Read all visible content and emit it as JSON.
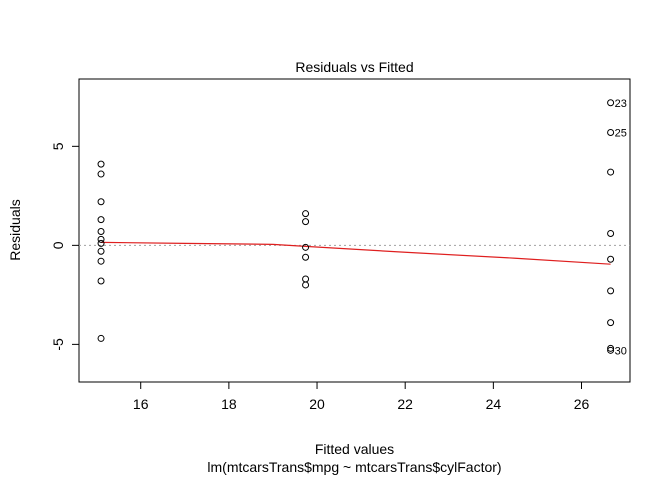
{
  "chart_data": {
    "type": "scatter",
    "title": "Residuals vs Fitted",
    "xlabel": "Fitted values",
    "subtitle": "lm(mtcarsTrans$mpg ~ mtcarsTrans$cylFactor)",
    "ylabel": "Residuals",
    "xlim": [
      14.6,
      27.1
    ],
    "ylim": [
      -6.9,
      8.4
    ],
    "xticks": [
      16,
      18,
      20,
      22,
      24,
      26
    ],
    "yticks": [
      -5,
      0,
      5
    ],
    "reference_line_y": 0,
    "points": [
      {
        "x": 15.1,
        "y": 4.1
      },
      {
        "x": 15.1,
        "y": 3.6
      },
      {
        "x": 15.1,
        "y": 2.2
      },
      {
        "x": 15.1,
        "y": 1.3
      },
      {
        "x": 15.1,
        "y": 0.7
      },
      {
        "x": 15.1,
        "y": 0.3
      },
      {
        "x": 15.1,
        "y": 0.1
      },
      {
        "x": 15.1,
        "y": -0.3
      },
      {
        "x": 15.1,
        "y": -0.8
      },
      {
        "x": 15.1,
        "y": -1.8
      },
      {
        "x": 15.1,
        "y": -4.7
      },
      {
        "x": 19.74,
        "y": 1.6
      },
      {
        "x": 19.74,
        "y": 1.2
      },
      {
        "x": 19.74,
        "y": -0.1
      },
      {
        "x": 19.74,
        "y": -0.6
      },
      {
        "x": 19.74,
        "y": -1.7
      },
      {
        "x": 19.74,
        "y": -2.0
      },
      {
        "x": 26.66,
        "y": 7.2,
        "label": "23"
      },
      {
        "x": 26.66,
        "y": 5.7,
        "label": "25"
      },
      {
        "x": 26.66,
        "y": 3.7
      },
      {
        "x": 26.66,
        "y": 0.6
      },
      {
        "x": 26.66,
        "y": -0.7
      },
      {
        "x": 26.66,
        "y": -2.3
      },
      {
        "x": 26.66,
        "y": -3.9
      },
      {
        "x": 26.66,
        "y": -5.2
      },
      {
        "x": 26.66,
        "y": -5.3,
        "label": "30"
      }
    ],
    "smooth_line": [
      {
        "x": 15.1,
        "y": 0.15
      },
      {
        "x": 17.0,
        "y": 0.1
      },
      {
        "x": 19.0,
        "y": 0.05
      },
      {
        "x": 19.74,
        "y": -0.05
      },
      {
        "x": 22.0,
        "y": -0.35
      },
      {
        "x": 24.5,
        "y": -0.65
      },
      {
        "x": 26.66,
        "y": -0.95
      }
    ],
    "colors": {
      "points": "#000000",
      "smooth_line": "#df1f1f",
      "reference_line": "#a0a0a0"
    },
    "grid": false
  }
}
